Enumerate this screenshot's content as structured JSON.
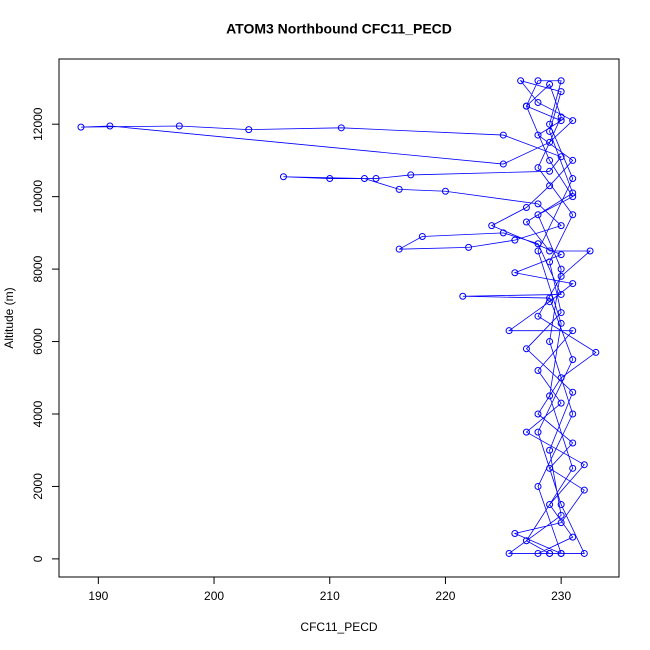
{
  "chart_data": {
    "type": "line",
    "markers": true,
    "title": "ATOM3 Northbound CFC11_PECD",
    "xlabel": "CFC11_PECD",
    "ylabel": "Altitude (m)",
    "xlim": [
      186.6,
      235.0
    ],
    "ylim": [
      -500,
      13800
    ],
    "xticks": [
      190,
      200,
      210,
      220,
      230
    ],
    "yticks": [
      0,
      2000,
      4000,
      6000,
      8000,
      10000,
      12000
    ],
    "grid": false,
    "x": [
      230,
      228,
      231,
      229,
      230,
      228,
      231,
      229,
      227,
      228,
      230,
      229,
      231,
      228,
      230,
      229,
      231,
      227,
      229,
      232,
      230,
      228,
      231,
      229,
      221.5,
      230,
      228,
      225,
      218,
      216,
      222,
      226,
      230,
      228,
      220,
      216,
      213,
      206,
      210,
      214,
      217,
      229,
      230,
      225,
      211,
      203,
      197,
      188.5,
      191,
      225,
      229,
      231,
      228,
      226.5,
      230,
      229,
      231,
      227,
      229,
      232.5,
      230,
      228,
      233,
      230,
      228,
      231,
      229,
      232,
      230,
      226,
      230,
      228,
      231,
      229,
      232,
      227,
      230,
      228,
      231,
      225.5,
      229,
      231,
      226,
      230,
      224,
      227,
      229,
      231,
      228,
      230,
      227,
      229,
      230,
      228,
      231,
      229,
      230,
      227,
      231,
      229,
      230,
      225.5,
      229
    ],
    "series": [
      {
        "name": "CFC11_PECD",
        "color": "#0000ff",
        "values": [
          150,
          2000,
          4000,
          6000,
          8000,
          9500,
          10000,
          11000,
          12500,
          13200,
          13200,
          12000,
          10500,
          8500,
          6500,
          4500,
          2500,
          500,
          150,
          150,
          1500,
          3500,
          5500,
          7200,
          7250,
          7300,
          8700,
          9000,
          8900,
          8550,
          8600,
          8800,
          9200,
          9800,
          10150,
          10200,
          10500,
          10550,
          10500,
          10500,
          10600,
          10700,
          11100,
          11700,
          11900,
          11850,
          11950,
          11920,
          11950,
          10900,
          11500,
          12100,
          12600,
          13200,
          12900,
          11800,
          10100,
          9300,
          8500,
          8500,
          7800,
          6700,
          5700,
          5000,
          4000,
          3200,
          2500,
          1900,
          1000,
          700,
          150,
          150,
          600,
          1500,
          2600,
          3500,
          4300,
          5200,
          6300,
          6300,
          7100,
          7600,
          7900,
          8400,
          9200,
          9700,
          10300,
          11000,
          11700,
          12100,
          12500,
          13100,
          12200,
          10800,
          9500,
          8200,
          6800,
          5800,
          4600,
          3000,
          1200,
          150,
          150
        ]
      }
    ]
  }
}
